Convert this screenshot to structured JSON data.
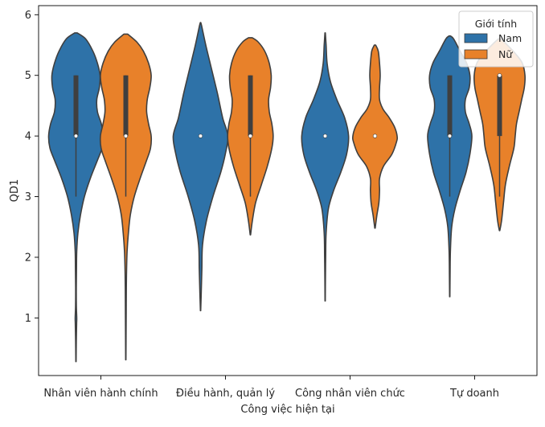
{
  "chart_data": {
    "type": "violin",
    "title": "",
    "xlabel": "Công việc hiện tại",
    "ylabel": "QD1",
    "ylim": [
      0.05,
      6.15
    ],
    "yticks": [
      1,
      2,
      3,
      4,
      5,
      6
    ],
    "grid": false,
    "categories": [
      "Nhân viên hành chính",
      "Điều hành, quản lý",
      "Công nhân viên chức",
      "Tự doanh"
    ],
    "legend": {
      "title": "Giới tính",
      "placement": "top-right",
      "entries": [
        {
          "label": " Nam",
          "color": "#2e72a8"
        },
        {
          "label": " Nữ",
          "color": "#e8812a"
        }
      ]
    },
    "series": [
      {
        "name": " Nam",
        "color": "#2e72a8",
        "violins": [
          {
            "category": "Nhân viên hành chính",
            "median": 4,
            "q1": 4,
            "q3": 5,
            "whisker_low": 3,
            "whisker_high": 5,
            "profile": [
              [
                0.28,
                0.002
              ],
              [
                0.6,
                0.005
              ],
              [
                0.9,
                0.01
              ],
              [
                1.0,
                0.012
              ],
              [
                1.2,
                0.006
              ],
              [
                1.5,
                0.005
              ],
              [
                1.8,
                0.008
              ],
              [
                2.1,
                0.012
              ],
              [
                2.4,
                0.03
              ],
              [
                2.7,
                0.07
              ],
              [
                3.0,
                0.13
              ],
              [
                3.3,
                0.22
              ],
              [
                3.6,
                0.33
              ],
              [
                3.8,
                0.4
              ],
              [
                4.0,
                0.42
              ],
              [
                4.2,
                0.39
              ],
              [
                4.4,
                0.33
              ],
              [
                4.6,
                0.32
              ],
              [
                4.8,
                0.36
              ],
              [
                5.0,
                0.37
              ],
              [
                5.2,
                0.33
              ],
              [
                5.4,
                0.26
              ],
              [
                5.6,
                0.15
              ],
              [
                5.7,
                0.02
              ]
            ]
          },
          {
            "category": "Điều hành, quản lý",
            "median": 4,
            "q1": 4,
            "q3": 4,
            "whisker_low": 4,
            "whisker_high": 4,
            "profile": [
              [
                1.12,
                0.002
              ],
              [
                1.4,
                0.01
              ],
              [
                1.8,
                0.02
              ],
              [
                2.2,
                0.03
              ],
              [
                2.6,
                0.09
              ],
              [
                3.0,
                0.19
              ],
              [
                3.4,
                0.31
              ],
              [
                3.7,
                0.38
              ],
              [
                4.0,
                0.42
              ],
              [
                4.3,
                0.34
              ],
              [
                4.7,
                0.26
              ],
              [
                5.1,
                0.17
              ],
              [
                5.5,
                0.08
              ],
              [
                5.8,
                0.02
              ],
              [
                5.87,
                0.003
              ]
            ]
          },
          {
            "category": "Công nhân viên chức",
            "median": 4,
            "q1": 4,
            "q3": 4,
            "whisker_low": 4,
            "whisker_high": 4,
            "profile": [
              [
                1.28,
                0.002
              ],
              [
                1.6,
                0.004
              ],
              [
                2.0,
                0.008
              ],
              [
                2.4,
                0.015
              ],
              [
                2.8,
                0.05
              ],
              [
                3.1,
                0.13
              ],
              [
                3.4,
                0.24
              ],
              [
                3.7,
                0.33
              ],
              [
                4.0,
                0.36
              ],
              [
                4.3,
                0.3
              ],
              [
                4.6,
                0.18
              ],
              [
                4.9,
                0.08
              ],
              [
                5.2,
                0.03
              ],
              [
                5.5,
                0.015
              ],
              [
                5.7,
                0.003
              ]
            ]
          },
          {
            "category": "Tự doanh",
            "median": 4,
            "q1": 4,
            "q3": 5,
            "whisker_low": 3,
            "whisker_high": 5,
            "profile": [
              [
                1.35,
                0.002
              ],
              [
                1.7,
                0.005
              ],
              [
                2.1,
                0.01
              ],
              [
                2.5,
                0.03
              ],
              [
                2.8,
                0.08
              ],
              [
                3.1,
                0.16
              ],
              [
                3.4,
                0.25
              ],
              [
                3.7,
                0.31
              ],
              [
                4.0,
                0.34
              ],
              [
                4.2,
                0.3
              ],
              [
                4.4,
                0.24
              ],
              [
                4.6,
                0.24
              ],
              [
                4.8,
                0.3
              ],
              [
                5.0,
                0.31
              ],
              [
                5.2,
                0.26
              ],
              [
                5.4,
                0.16
              ],
              [
                5.6,
                0.06
              ],
              [
                5.65,
                0.01
              ]
            ]
          }
        ]
      },
      {
        "name": " Nữ",
        "color": "#e8812a",
        "violins": [
          {
            "category": "Nhân viên hành chính",
            "median": 4,
            "q1": 4,
            "q3": 5,
            "whisker_low": 3,
            "whisker_high": 5,
            "profile": [
              [
                0.31,
                0.002
              ],
              [
                0.7,
                0.004
              ],
              [
                1.1,
                0.006
              ],
              [
                1.5,
                0.008
              ],
              [
                1.8,
                0.012
              ],
              [
                2.1,
                0.02
              ],
              [
                2.4,
                0.04
              ],
              [
                2.7,
                0.07
              ],
              [
                3.0,
                0.13
              ],
              [
                3.3,
                0.22
              ],
              [
                3.6,
                0.32
              ],
              [
                3.8,
                0.38
              ],
              [
                4.0,
                0.39
              ],
              [
                4.2,
                0.35
              ],
              [
                4.4,
                0.32
              ],
              [
                4.6,
                0.33
              ],
              [
                4.8,
                0.37
              ],
              [
                5.0,
                0.39
              ],
              [
                5.2,
                0.35
              ],
              [
                5.4,
                0.27
              ],
              [
                5.55,
                0.17
              ],
              [
                5.68,
                0.03
              ]
            ]
          },
          {
            "category": "Điều hành, quản lý",
            "median": 4,
            "q1": 4,
            "q3": 5,
            "whisker_low": 3,
            "whisker_high": 5,
            "profile": [
              [
                2.37,
                0.003
              ],
              [
                2.6,
                0.03
              ],
              [
                2.9,
                0.08
              ],
              [
                3.2,
                0.17
              ],
              [
                3.5,
                0.26
              ],
              [
                3.8,
                0.33
              ],
              [
                4.0,
                0.35
              ],
              [
                4.2,
                0.33
              ],
              [
                4.4,
                0.29
              ],
              [
                4.6,
                0.28
              ],
              [
                4.8,
                0.31
              ],
              [
                5.0,
                0.32
              ],
              [
                5.2,
                0.29
              ],
              [
                5.4,
                0.22
              ],
              [
                5.55,
                0.12
              ],
              [
                5.62,
                0.03
              ]
            ]
          },
          {
            "category": "Công nhân viên chức",
            "median": 4,
            "q1": 4,
            "q3": 4,
            "whisker_low": 4,
            "whisker_high": 4,
            "profile": [
              [
                2.48,
                0.003
              ],
              [
                2.7,
                0.03
              ],
              [
                2.9,
                0.06
              ],
              [
                3.1,
                0.07
              ],
              [
                3.3,
                0.07
              ],
              [
                3.5,
                0.13
              ],
              [
                3.7,
                0.26
              ],
              [
                3.9,
                0.33
              ],
              [
                4.0,
                0.34
              ],
              [
                4.15,
                0.3
              ],
              [
                4.3,
                0.22
              ],
              [
                4.45,
                0.12
              ],
              [
                4.6,
                0.07
              ],
              [
                4.8,
                0.07
              ],
              [
                5.0,
                0.08
              ],
              [
                5.2,
                0.07
              ],
              [
                5.4,
                0.05
              ],
              [
                5.5,
                0.01
              ]
            ]
          },
          {
            "category": "Tự doanh",
            "median": 5,
            "q1": 4,
            "q3": 5,
            "whisker_low": 3,
            "whisker_high": 5,
            "profile": [
              [
                2.44,
                0.003
              ],
              [
                2.6,
                0.03
              ],
              [
                2.9,
                0.06
              ],
              [
                3.2,
                0.09
              ],
              [
                3.5,
                0.15
              ],
              [
                3.8,
                0.22
              ],
              [
                4.0,
                0.24
              ],
              [
                4.2,
                0.26
              ],
              [
                4.4,
                0.3
              ],
              [
                4.6,
                0.34
              ],
              [
                4.8,
                0.38
              ],
              [
                5.0,
                0.39
              ],
              [
                5.2,
                0.35
              ],
              [
                5.35,
                0.25
              ],
              [
                5.5,
                0.12
              ],
              [
                5.6,
                0.02
              ]
            ]
          }
        ]
      }
    ]
  }
}
